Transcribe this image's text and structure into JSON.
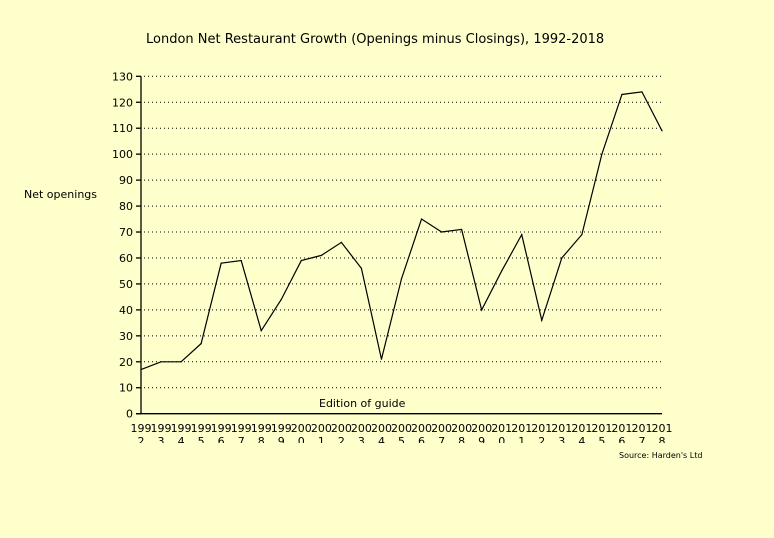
{
  "chart_data": {
    "type": "line",
    "title": "London Net Restaurant Growth (Openings minus Closings), 1992-2018",
    "xlabel": "Edition of guide",
    "ylabel": "Net openings",
    "source": "Source: Harden's Ltd",
    "categories": [
      "1992",
      "1993",
      "1994",
      "1995",
      "1996",
      "1997",
      "1998",
      "1999",
      "2000",
      "2001",
      "2002",
      "2003",
      "2004",
      "2005",
      "2006",
      "2007",
      "2008",
      "2009",
      "2010",
      "2011",
      "2012",
      "2013",
      "2014",
      "2015",
      "2016",
      "2017",
      "2018"
    ],
    "series": [
      {
        "name": "Net openings",
        "values": [
          17,
          20,
          20,
          27,
          58,
          59,
          32,
          44,
          59,
          61,
          66,
          56,
          21,
          52,
          75,
          70,
          71,
          40,
          55,
          69,
          36,
          60,
          69,
          100,
          123,
          124,
          109
        ]
      }
    ],
    "ylim": [
      0,
      130
    ],
    "yticks": [
      0,
      10,
      20,
      30,
      40,
      50,
      60,
      70,
      80,
      90,
      100,
      110,
      120,
      130
    ],
    "grid": "horizontal-dotted",
    "legend": "none",
    "colors": {
      "background": "#FFFFCC",
      "line": "#000000",
      "axis": "#000000",
      "grid": "#000000"
    }
  }
}
